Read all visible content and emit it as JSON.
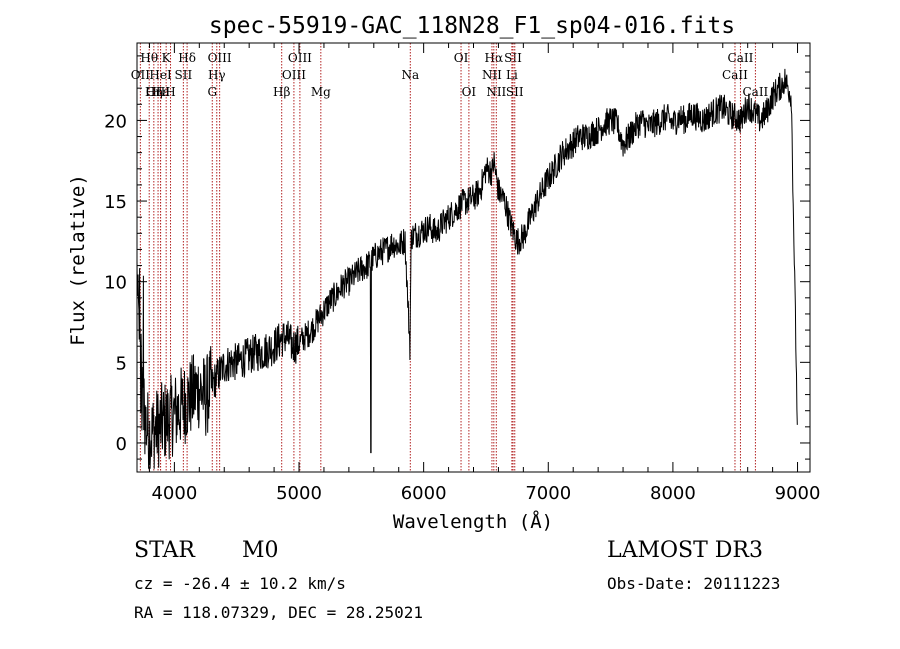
{
  "chart_data": {
    "type": "line",
    "title": "spec-55919-GAC_118N28_F1_sp04-016.fits",
    "xlabel": "Wavelength (Å)",
    "ylabel": "Flux (relative)",
    "xlim": [
      3700,
      9100
    ],
    "ylim": [
      -1.8,
      24.8
    ],
    "xticks": [
      4000,
      5000,
      6000,
      7000,
      8000,
      9000
    ],
    "yticks": [
      0,
      5,
      10,
      15,
      20
    ],
    "spectrum_envelope": {
      "x": [
        3700,
        3730,
        3760,
        3800,
        3850,
        3900,
        3950,
        4000,
        4050,
        4100,
        4150,
        4200,
        4250,
        4300,
        4350,
        4400,
        4450,
        4500,
        4550,
        4600,
        4650,
        4700,
        4750,
        4800,
        4850,
        4900,
        4950,
        5000,
        5050,
        5100,
        5150,
        5200,
        5250,
        5300,
        5350,
        5400,
        5450,
        5500,
        5550,
        5600,
        5650,
        5700,
        5750,
        5800,
        5850,
        5890,
        5900,
        5950,
        6000,
        6050,
        6100,
        6150,
        6200,
        6250,
        6300,
        6350,
        6400,
        6450,
        6500,
        6550,
        6563,
        6600,
        6650,
        6700,
        6750,
        6800,
        6850,
        6900,
        6950,
        7000,
        7050,
        7100,
        7150,
        7200,
        7250,
        7300,
        7350,
        7400,
        7450,
        7500,
        7550,
        7600,
        7650,
        7700,
        7750,
        7800,
        7850,
        7900,
        7950,
        8000,
        8050,
        8100,
        8150,
        8200,
        8250,
        8300,
        8350,
        8400,
        8450,
        8500,
        8550,
        8600,
        8650,
        8700,
        8750,
        8800,
        8850,
        8900,
        8950,
        9000
      ],
      "y": [
        10.5,
        3.0,
        1.5,
        0.5,
        0.8,
        1.2,
        1.5,
        1.8,
        2.2,
        2.6,
        3.0,
        3.4,
        2.8,
        3.6,
        4.2,
        4.8,
        5.0,
        5.0,
        5.2,
        5.4,
        5.6,
        5.6,
        5.8,
        6.0,
        6.4,
        6.6,
        6.0,
        6.2,
        6.6,
        7.0,
        7.6,
        8.2,
        8.8,
        9.2,
        9.8,
        10.0,
        10.4,
        10.8,
        11.0,
        11.5,
        11.8,
        12.0,
        12.4,
        12.2,
        12.6,
        6.0,
        12.8,
        13.0,
        13.2,
        13.4,
        13.0,
        13.6,
        14.0,
        14.4,
        14.8,
        15.0,
        15.2,
        15.6,
        17.0,
        16.8,
        17.5,
        15.6,
        15.0,
        13.5,
        12.5,
        12.8,
        13.8,
        14.8,
        15.6,
        16.4,
        17.0,
        17.8,
        18.2,
        18.6,
        19.0,
        19.0,
        19.2,
        19.4,
        19.8,
        20.0,
        19.8,
        18.5,
        19.0,
        19.6,
        20.0,
        19.6,
        19.8,
        20.0,
        20.2,
        19.8,
        20.2,
        20.0,
        20.4,
        20.2,
        20.0,
        20.4,
        20.6,
        20.8,
        20.4,
        20.2,
        20.0,
        21.0,
        20.5,
        20.0,
        20.5,
        21.5,
        22.0,
        22.5,
        21.5,
        0.5
      ]
    },
    "spectral_lines": [
      {
        "label": "Hθ",
        "x": 3798,
        "row": 1
      },
      {
        "label": "OII",
        "x": 3727,
        "row": 2
      },
      {
        "label": "OIII",
        "x": 3869,
        "row": 3
      },
      {
        "label": "Hε",
        "x": 3889,
        "row": 3
      },
      {
        "label": "Hη",
        "x": 3835,
        "row": 3
      },
      {
        "label": "K",
        "x": 3934,
        "row": 1
      },
      {
        "label": "HeI",
        "x": 3889,
        "row": 2
      },
      {
        "label": "SII",
        "x": 4072,
        "row": 2
      },
      {
        "label": "H",
        "x": 3969,
        "row": 3
      },
      {
        "label": "Hδ",
        "x": 4102,
        "row": 1
      },
      {
        "label": "OIII",
        "x": 4363,
        "row": 1
      },
      {
        "label": "Hγ",
        "x": 4340,
        "row": 2
      },
      {
        "label": "G",
        "x": 4304,
        "row": 3
      },
      {
        "label": "Hβ",
        "x": 4861,
        "row": 3
      },
      {
        "label": "OIII",
        "x": 5007,
        "row": 1
      },
      {
        "label": "OIII",
        "x": 4959,
        "row": 2
      },
      {
        "label": "Mg",
        "x": 5175,
        "row": 3
      },
      {
        "label": "Na",
        "x": 5893,
        "row": 2
      },
      {
        "label": "OI",
        "x": 6300,
        "row": 1
      },
      {
        "label": "OI",
        "x": 6363,
        "row": 3
      },
      {
        "label": "Hα",
        "x": 6563,
        "row": 1
      },
      {
        "label": "NII",
        "x": 6548,
        "row": 2
      },
      {
        "label": "NII",
        "x": 6583,
        "row": 3
      },
      {
        "label": "SII",
        "x": 6717,
        "row": 1
      },
      {
        "label": "Li",
        "x": 6708,
        "row": 2
      },
      {
        "label": "SII",
        "x": 6731,
        "row": 3
      },
      {
        "label": "CaII",
        "x": 8542,
        "row": 1
      },
      {
        "label": "CaII",
        "x": 8498,
        "row": 2
      },
      {
        "label": "CaII",
        "x": 8662,
        "row": 3
      }
    ]
  },
  "info": {
    "object_class": "STAR",
    "subclass": "M0",
    "survey": "LAMOST DR3",
    "cz": "cz = -26.4 ± 10.2 km/s",
    "obs_date": "Obs-Date: 20111223",
    "coords": "RA = 118.07329, DEC =  28.25021"
  },
  "colors": {
    "line_marker": "#b22222",
    "spectrum": "#000000"
  }
}
